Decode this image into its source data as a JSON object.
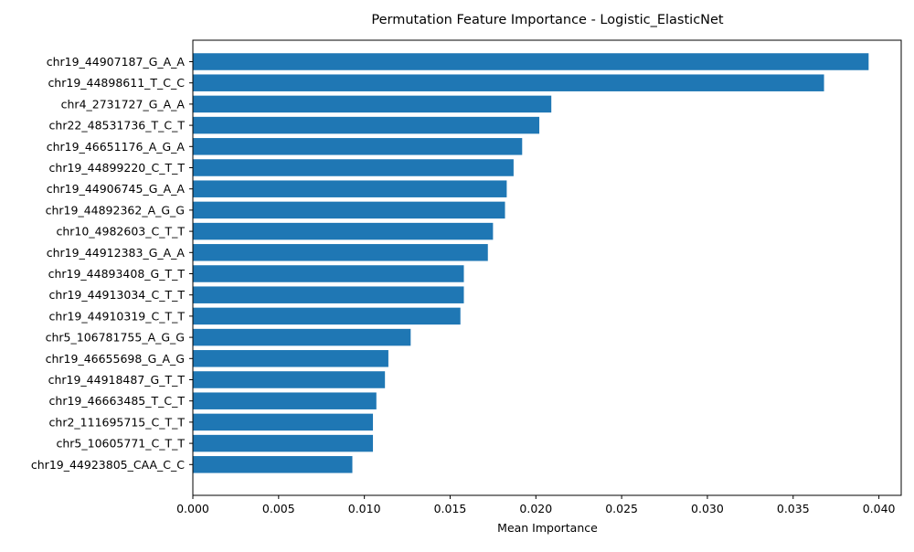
{
  "chart_data": {
    "type": "bar",
    "orientation": "horizontal",
    "title": "Permutation Feature Importance - Logistic_ElasticNet",
    "xlabel": "Mean Importance",
    "ylabel": "",
    "xlim": [
      0,
      0.0413
    ],
    "xticks": [
      "0.000",
      "0.005",
      "0.010",
      "0.015",
      "0.020",
      "0.025",
      "0.030",
      "0.035",
      "0.040"
    ],
    "grid": false,
    "bar_color": "#1f77b4",
    "categories": [
      "chr19_44907187_G_A_A",
      "chr19_44898611_T_C_C",
      "chr4_2731727_G_A_A",
      "chr22_48531736_T_C_T",
      "chr19_46651176_A_G_A",
      "chr19_44899220_C_T_T",
      "chr19_44906745_G_A_A",
      "chr19_44892362_A_G_G",
      "chr10_4982603_C_T_T",
      "chr19_44912383_G_A_A",
      "chr19_44893408_G_T_T",
      "chr19_44913034_C_T_T",
      "chr19_44910319_C_T_T",
      "chr5_106781755_A_G_G",
      "chr19_46655698_G_A_G",
      "chr19_44918487_G_T_T",
      "chr19_46663485_T_C_T",
      "chr2_111695715_C_T_T",
      "chr5_10605771_C_T_T",
      "chr19_44923805_CAA_C_C"
    ],
    "values": [
      0.0394,
      0.0368,
      0.0209,
      0.0202,
      0.0192,
      0.0187,
      0.0183,
      0.0182,
      0.0175,
      0.0172,
      0.0158,
      0.0158,
      0.0156,
      0.0127,
      0.0114,
      0.0112,
      0.0107,
      0.0105,
      0.0105,
      0.0093
    ]
  }
}
